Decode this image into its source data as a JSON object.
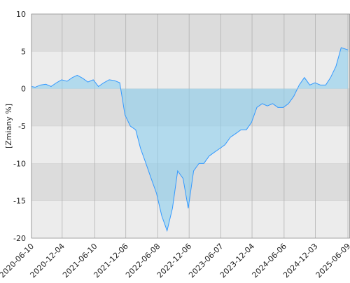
{
  "chart_data": {
    "type": "area",
    "y_label": "[Zmiany %]",
    "x": [
      "2020-06-10",
      "2020-07-01",
      "2020-08-01",
      "2020-09-01",
      "2020-10-01",
      "2020-11-01",
      "2020-12-01",
      "2021-01-01",
      "2021-02-01",
      "2021-03-01",
      "2021-04-01",
      "2021-05-01",
      "2021-06-01",
      "2021-07-01",
      "2021-08-01",
      "2021-09-01",
      "2021-10-01",
      "2021-11-01",
      "2021-12-01",
      "2022-01-01",
      "2022-02-01",
      "2022-03-01",
      "2022-04-01",
      "2022-05-01",
      "2022-06-01",
      "2022-07-01",
      "2022-08-01",
      "2022-09-01",
      "2022-10-01",
      "2022-11-01",
      "2022-12-01",
      "2023-01-01",
      "2023-02-01",
      "2023-03-01",
      "2023-04-01",
      "2023-05-01",
      "2023-06-01",
      "2023-07-01",
      "2023-08-01",
      "2023-09-01",
      "2023-10-01",
      "2023-11-01",
      "2023-12-01",
      "2024-01-01",
      "2024-02-01",
      "2024-03-01",
      "2024-04-01",
      "2024-05-01",
      "2024-06-01",
      "2024-07-01",
      "2024-08-01",
      "2024-09-01",
      "2024-10-01",
      "2024-11-01",
      "2024-12-01",
      "2025-01-01",
      "2025-02-01",
      "2025-03-01",
      "2025-04-01",
      "2025-05-01",
      "2025-06-09"
    ],
    "values": [
      0.3,
      0.2,
      0.5,
      0.6,
      0.3,
      0.8,
      1.2,
      1.0,
      1.5,
      1.8,
      1.4,
      0.9,
      1.2,
      0.3,
      0.8,
      1.2,
      1.1,
      0.8,
      -3.5,
      -5,
      -5.5,
      -8,
      -10,
      -12,
      -14,
      -17,
      -19,
      -16,
      -11,
      -12,
      -16,
      -11,
      -10,
      -10,
      -9,
      -8.5,
      -8,
      -7.5,
      -6.5,
      -6,
      -5.5,
      -5.5,
      -4.5,
      -2.5,
      -2,
      -2.3,
      -2,
      -2.5,
      -2.5,
      -2,
      -1,
      0.5,
      1.5,
      0.5,
      0.8,
      0.5,
      0.5,
      1.5,
      3,
      5.5,
      5.2
    ],
    "color": "#3399ff",
    "xlim": [
      "2020-06-10",
      "2025-06-21"
    ],
    "xticks": [
      "2020-06-10",
      "2020-12-04",
      "2021-06-10",
      "2021-12-06",
      "2022-06-08",
      "2022-12-06",
      "2023-06-07",
      "2023-12-04",
      "2024-06-06",
      "2024-12-03",
      "2025-06-09"
    ],
    "ylim": [
      -20,
      10
    ],
    "yticks": [
      -20,
      -15,
      -10,
      -5,
      0,
      5,
      10
    ],
    "grid": true
  }
}
